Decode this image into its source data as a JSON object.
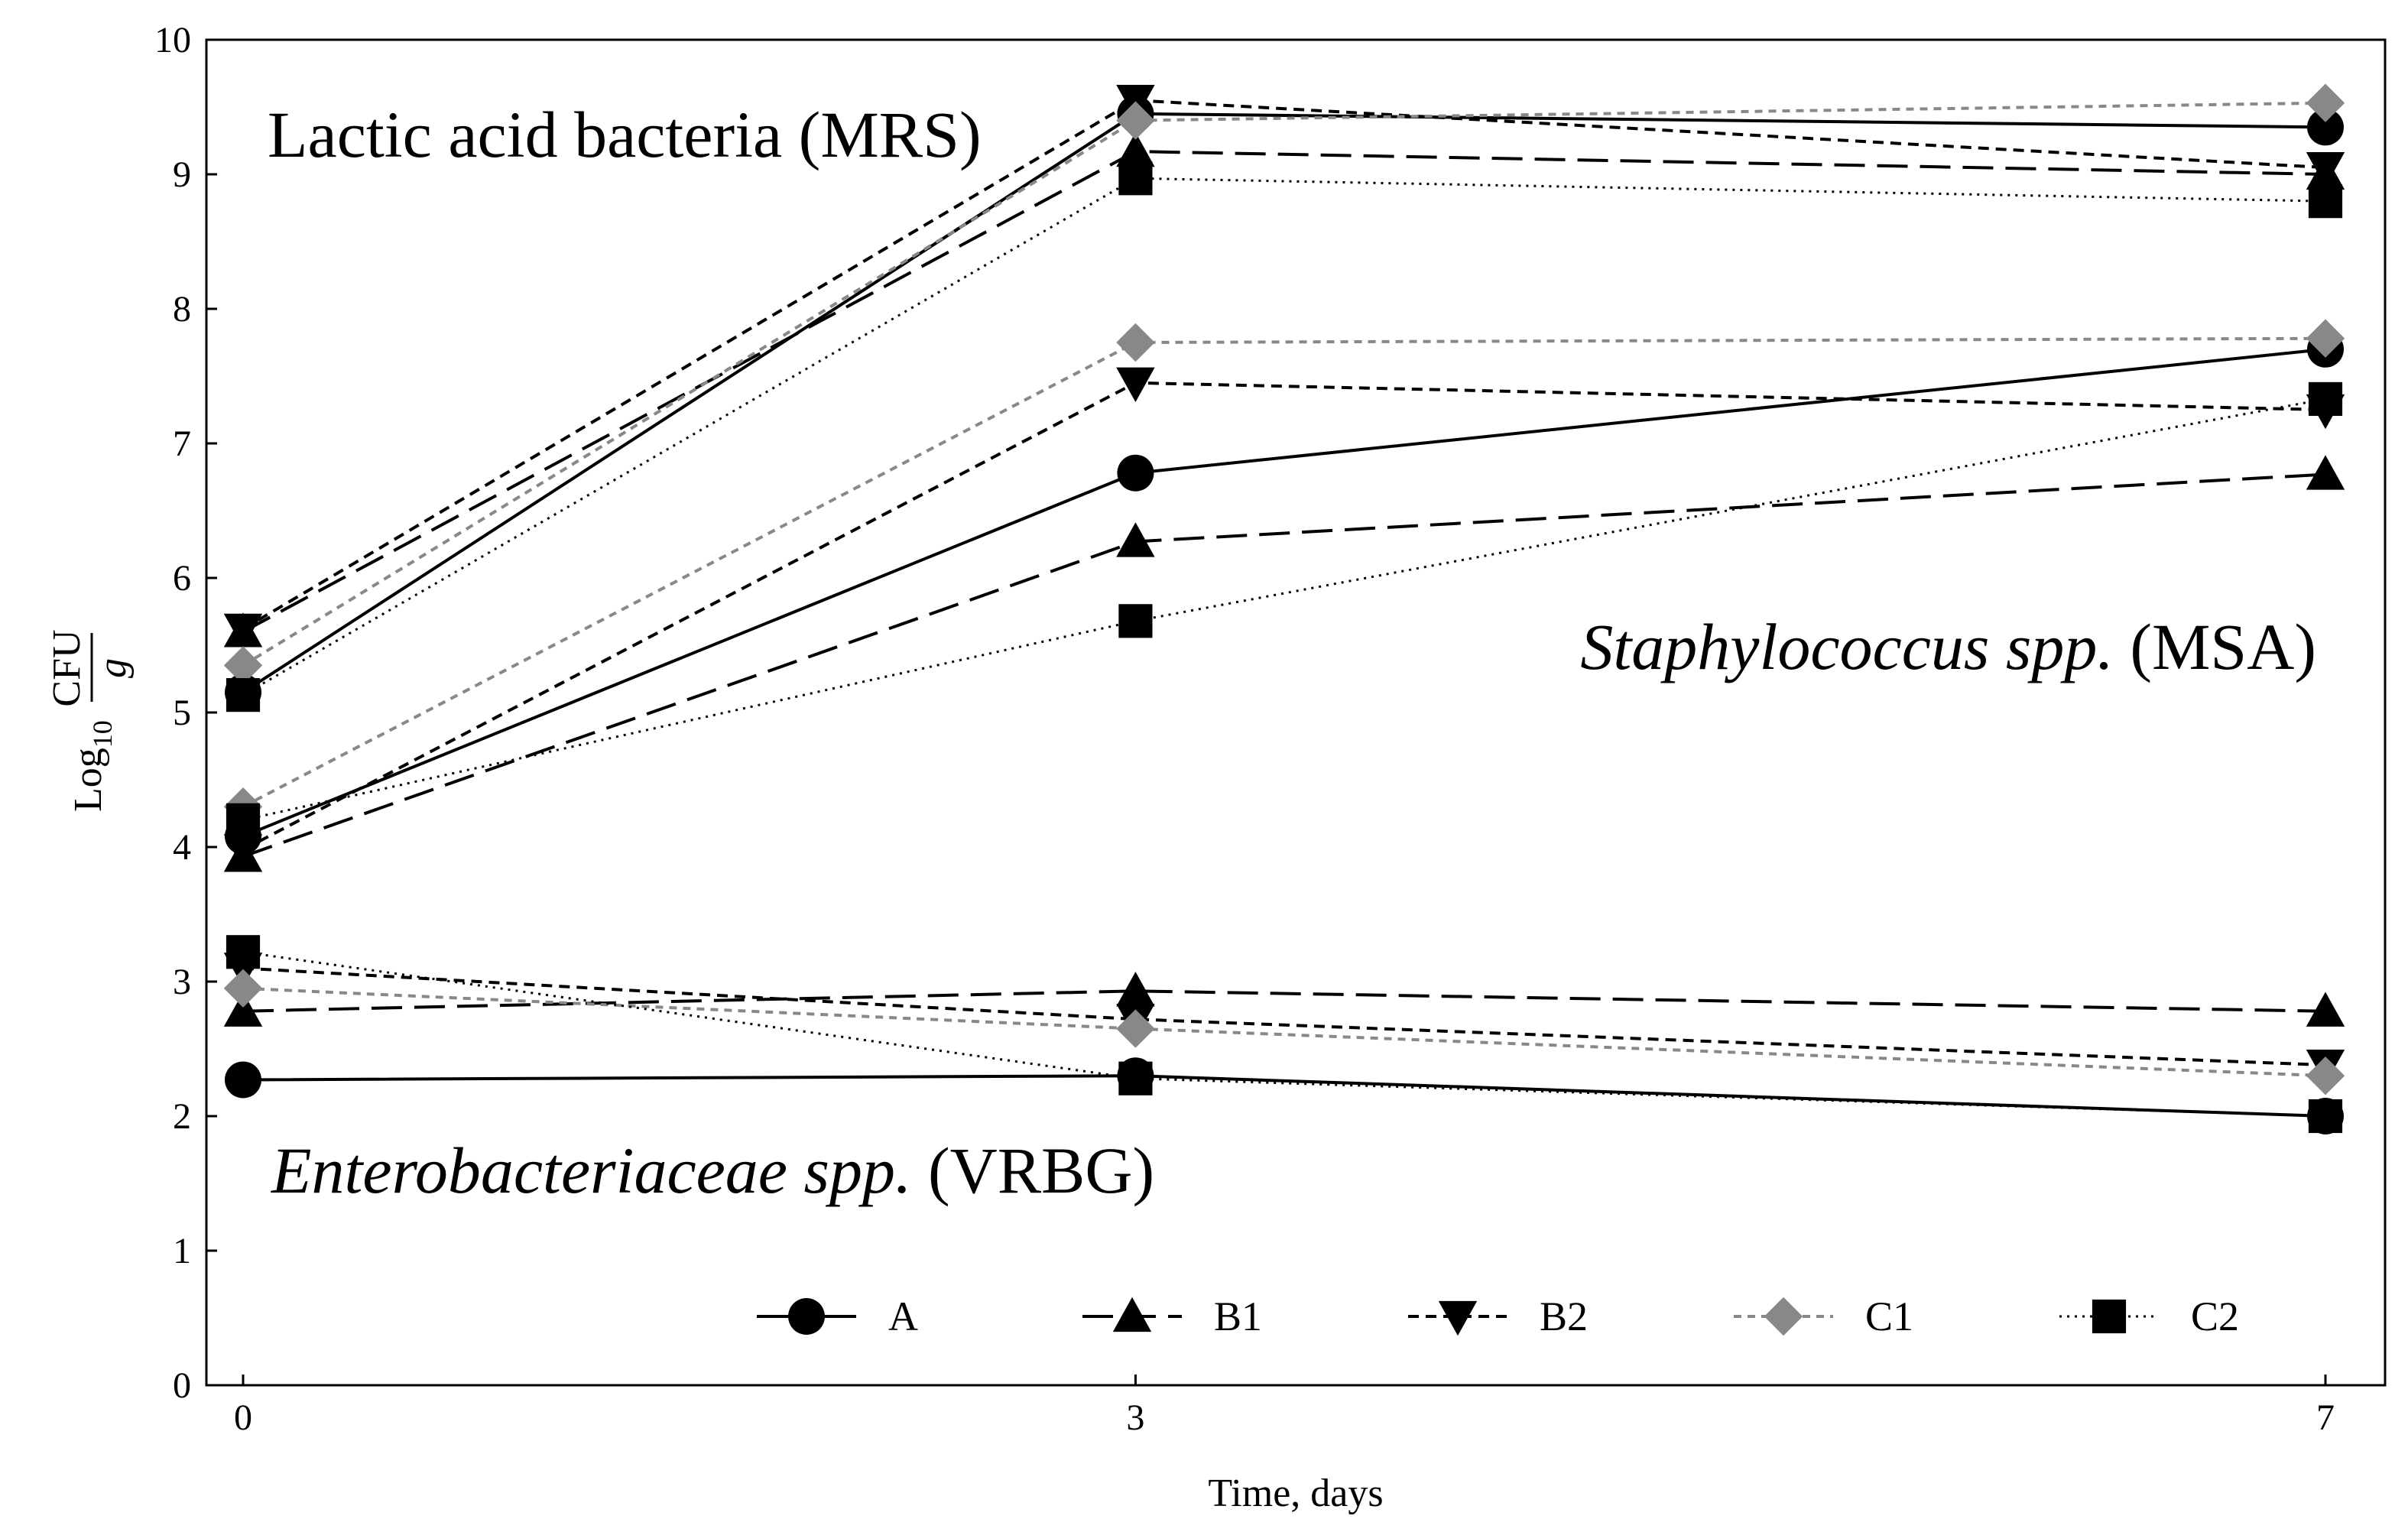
{
  "chart_data": {
    "type": "line",
    "x": [
      0,
      3,
      7
    ],
    "xlabel": "Time, days",
    "ylabel": {
      "prefix": "Log",
      "subscript": "10",
      "numerator": "CFU",
      "denominator": "g"
    },
    "xticks": [
      "0",
      "3",
      "7"
    ],
    "yticks": [
      "0",
      "1",
      "2",
      "3",
      "4",
      "5",
      "6",
      "7",
      "8",
      "9",
      "10"
    ],
    "ylim": [
      0,
      10
    ],
    "grid": false,
    "legend_position": "bottom-center",
    "annotations": {
      "lab": "Lactic acid bacteria (MRS)",
      "staph_italic": "Staphylococcus spp.",
      "staph_plain": " (MSA)",
      "entero_italic": "Enterobacteriaceae spp.",
      "entero_plain": " (VRBG)"
    },
    "series": [
      {
        "name": "A",
        "marker": "circle",
        "color": "#000000",
        "dash": "solid",
        "groups": {
          "LAB": [
            5.15,
            9.45,
            9.35
          ],
          "Staphylococcus": [
            4.08,
            6.78,
            7.7
          ],
          "Enterobacteriaceae": [
            2.27,
            2.3,
            2.0
          ]
        }
      },
      {
        "name": "B1",
        "marker": "triangle-up",
        "color": "#000000",
        "dash": "long-dash",
        "groups": {
          "LAB": [
            5.6,
            9.17,
            9.0
          ],
          "Staphylococcus": [
            3.93,
            6.27,
            6.77
          ],
          "Enterobacteriaceae": [
            2.78,
            2.93,
            2.78
          ]
        }
      },
      {
        "name": "B2",
        "marker": "triangle-down",
        "color": "#000000",
        "dash": "short-dash",
        "groups": {
          "LAB": [
            5.62,
            9.55,
            9.05
          ],
          "Staphylococcus": [
            3.98,
            7.45,
            7.25
          ],
          "Enterobacteriaceae": [
            3.1,
            2.72,
            2.38
          ]
        }
      },
      {
        "name": "C1",
        "marker": "diamond",
        "color": "#888888",
        "dash": "dot",
        "groups": {
          "LAB": [
            5.35,
            9.4,
            9.53
          ],
          "Staphylococcus": [
            4.3,
            7.75,
            7.78
          ],
          "Enterobacteriaceae": [
            2.95,
            2.65,
            2.3
          ]
        }
      },
      {
        "name": "C2",
        "marker": "square",
        "color": "#000000",
        "dash": "fine-dot",
        "groups": {
          "LAB": [
            5.13,
            8.97,
            8.8
          ],
          "Staphylococcus": [
            4.2,
            5.68,
            7.33
          ],
          "Enterobacteriaceae": [
            3.22,
            2.28,
            2.0
          ]
        }
      }
    ]
  }
}
